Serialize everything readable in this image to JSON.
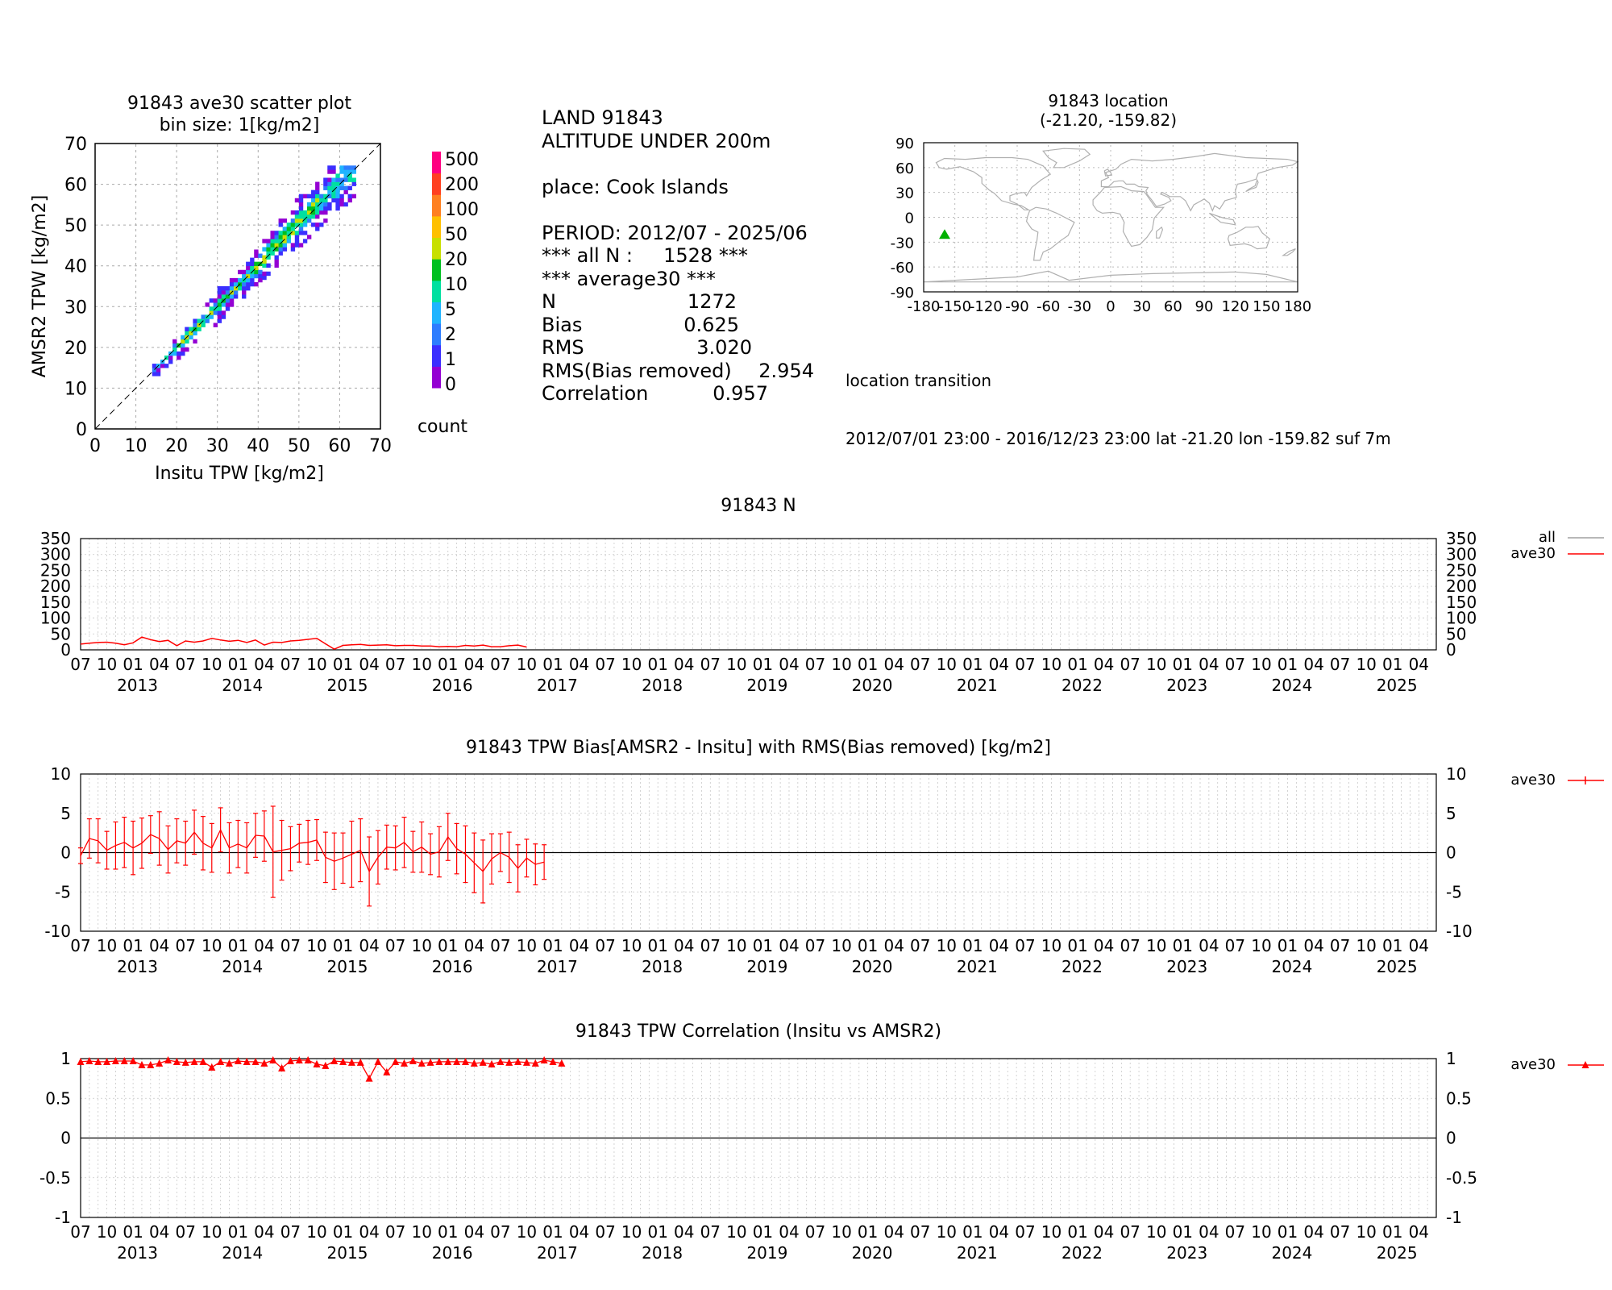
{
  "stats": {
    "lines": [
      "LAND 91843",
      "ALTITUDE UNDER 200m",
      "",
      "place: Cook Islands",
      "",
      "PERIOD: 2012/07 - 2025/06",
      "*** all N :     1528 ***",
      "*** average30 ***"
    ],
    "table": [
      {
        "label": "N",
        "value": "1272"
      },
      {
        "label": "Bias",
        "value": "0.625"
      },
      {
        "label": "RMS",
        "value": "3.020"
      },
      {
        "label": "RMS(Bias removed)",
        "value": "2.954"
      },
      {
        "label": "Correlation",
        "value": "0.957"
      }
    ]
  },
  "location_transition": {
    "title": "location transition",
    "text": "2012/07/01 23:00 - 2016/12/23 23:00 lat -21.20 lon -159.82 suf 7m"
  },
  "colors": {
    "series": "#ff0000",
    "all": "#a0a0a0",
    "marker": "#00b000",
    "colorbar": [
      "#9400d3",
      "#3b2eff",
      "#2d7dff",
      "#1fb4ff",
      "#00e0a0",
      "#00c020",
      "#c8e000",
      "#ffc000",
      "#ff8020",
      "#ff4020",
      "#ff0080"
    ]
  },
  "chart_data": [
    {
      "type": "heatmap",
      "title": "91843 ave30 scatter plot",
      "subtitle": "bin size: 1[kg/m2]",
      "xlabel": "Insitu TPW [kg/m2]",
      "ylabel": "AMSR2 TPW [kg/m2]",
      "xlim": [
        0,
        70
      ],
      "ylim": [
        0,
        70
      ],
      "ticks": [
        "0",
        "10",
        "20",
        "30",
        "40",
        "50",
        "60",
        "70"
      ],
      "grid": true,
      "colorbar": {
        "label": "count",
        "ticks": [
          "0",
          "1",
          "2",
          "5",
          "10",
          "20",
          "50",
          "100",
          "200",
          "500"
        ]
      },
      "bin_size": 1,
      "x_range_observed": [
        14,
        63
      ],
      "y_range_observed": [
        13,
        64
      ]
    },
    {
      "type": "scatter",
      "title": "91843 location",
      "subtitle": "(-21.20, -159.82)",
      "xlim": [
        -180,
        180
      ],
      "ylim": [
        -90,
        90
      ],
      "xticks": [
        "-180",
        "-150",
        "-120",
        "-90",
        "-60",
        "-30",
        "0",
        "30",
        "60",
        "90",
        "120",
        "150",
        "180"
      ],
      "yticks": [
        "90",
        "60",
        "30",
        "0",
        "-30",
        "-60",
        "-90"
      ],
      "points": [
        {
          "lon": -159.82,
          "lat": -21.2
        }
      ],
      "marker": "triangle"
    },
    {
      "type": "line",
      "title": "91843 N",
      "ylim": [
        0,
        350
      ],
      "yticks": [
        "350",
        "300",
        "250",
        "200",
        "150",
        "100",
        "50",
        "0"
      ],
      "legend": [
        "all",
        "ave30"
      ],
      "legend_position": "right",
      "x_start": "2012-07",
      "month_labels": [
        "07",
        "10",
        "01",
        "04"
      ],
      "years": [
        "2013",
        "2014",
        "2015",
        "2016",
        "2017",
        "2018",
        "2019",
        "2020",
        "2021",
        "2022",
        "2023",
        "2024",
        "2025"
      ],
      "series": [
        {
          "name": "ave30",
          "start": "2012-07",
          "values": [
            18,
            21,
            23,
            24,
            21,
            16,
            22,
            40,
            32,
            26,
            30,
            13,
            28,
            24,
            28,
            36,
            31,
            27,
            30,
            23,
            31,
            15,
            24,
            23,
            28,
            30,
            33,
            36,
            19,
            2,
            14,
            16,
            17,
            14,
            15,
            16,
            13,
            14,
            14,
            12,
            12,
            10,
            11,
            10,
            14,
            12,
            15,
            10,
            10,
            13,
            15,
            9
          ]
        }
      ]
    },
    {
      "type": "line",
      "title": "91843 TPW Bias[AMSR2 - Insitu] with RMS(Bias removed) [kg/m2]",
      "ylim": [
        -10,
        10
      ],
      "yticks": [
        "10",
        "5",
        "0",
        "-5",
        "-10"
      ],
      "legend": [
        "ave30"
      ],
      "legend_position": "right",
      "x_start": "2012-07",
      "month_labels": [
        "07",
        "10",
        "01",
        "04"
      ],
      "years": [
        "2013",
        "2014",
        "2015",
        "2016",
        "2017",
        "2018",
        "2019",
        "2020",
        "2021",
        "2022",
        "2023",
        "2024",
        "2025"
      ],
      "series": [
        {
          "name": "ave30",
          "start": "2012-07",
          "values": [
            -0.4,
            1.8,
            1.5,
            0.3,
            0.9,
            1.3,
            0.6,
            1.2,
            2.3,
            1.8,
            0.4,
            1.5,
            1.2,
            2.6,
            1.2,
            0.6,
            2.9,
            0.6,
            1.1,
            0.6,
            2.2,
            2.1,
            0.1,
            0.3,
            0.5,
            1.2,
            1.3,
            1.6,
            -0.6,
            -1.1,
            -0.7,
            -0.2,
            0.3,
            -2.4,
            -0.6,
            0.7,
            0.6,
            1.3,
            0.1,
            0.7,
            -0.2,
            0.1,
            2.0,
            0.5,
            -0.2,
            -1.3,
            -2.4,
            -0.8,
            0.0,
            -0.6,
            -2.0,
            -0.7,
            -1.5,
            -1.2
          ],
          "rms": [
            1.0,
            2.5,
            2.8,
            2.4,
            3.0,
            3.2,
            3.4,
            3.2,
            2.4,
            3.4,
            3.0,
            2.8,
            2.8,
            2.8,
            3.4,
            3.1,
            2.8,
            3.2,
            3.0,
            3.2,
            2.8,
            3.2,
            5.8,
            3.8,
            2.8,
            2.4,
            2.8,
            2.6,
            3.2,
            3.6,
            3.2,
            4.2,
            4.0,
            4.4,
            3.4,
            2.8,
            2.8,
            3.2,
            2.6,
            3.2,
            2.6,
            3.2,
            3.0,
            3.2,
            3.6,
            3.8,
            4.0,
            3.2,
            2.4,
            3.2,
            3.0,
            2.4,
            2.6,
            2.2
          ]
        }
      ]
    },
    {
      "type": "line",
      "title": "91843 TPW Correlation (Insitu vs AMSR2)",
      "ylim": [
        -1,
        1
      ],
      "yticks": [
        "1",
        "0.5",
        "0",
        "-0.5",
        "-1"
      ],
      "legend": [
        "ave30"
      ],
      "legend_position": "right",
      "x_start": "2012-07",
      "month_labels": [
        "07",
        "10",
        "01",
        "04"
      ],
      "years": [
        "2013",
        "2014",
        "2015",
        "2016",
        "2017",
        "2018",
        "2019",
        "2020",
        "2021",
        "2022",
        "2023",
        "2024",
        "2025"
      ],
      "series": [
        {
          "name": "ave30",
          "start": "2012-07",
          "values": [
            0.96,
            0.97,
            0.96,
            0.96,
            0.97,
            0.97,
            0.97,
            0.92,
            0.92,
            0.94,
            0.98,
            0.96,
            0.95,
            0.96,
            0.96,
            0.89,
            0.96,
            0.94,
            0.97,
            0.96,
            0.96,
            0.94,
            0.98,
            0.88,
            0.97,
            0.98,
            0.98,
            0.93,
            0.91,
            0.97,
            0.96,
            0.95,
            0.95,
            0.75,
            0.96,
            0.83,
            0.96,
            0.94,
            0.97,
            0.94,
            0.95,
            0.96,
            0.96,
            0.96,
            0.96,
            0.94,
            0.95,
            0.93,
            0.96,
            0.95,
            0.96,
            0.95,
            0.94,
            0.98,
            0.96,
            0.94
          ]
        }
      ]
    }
  ]
}
